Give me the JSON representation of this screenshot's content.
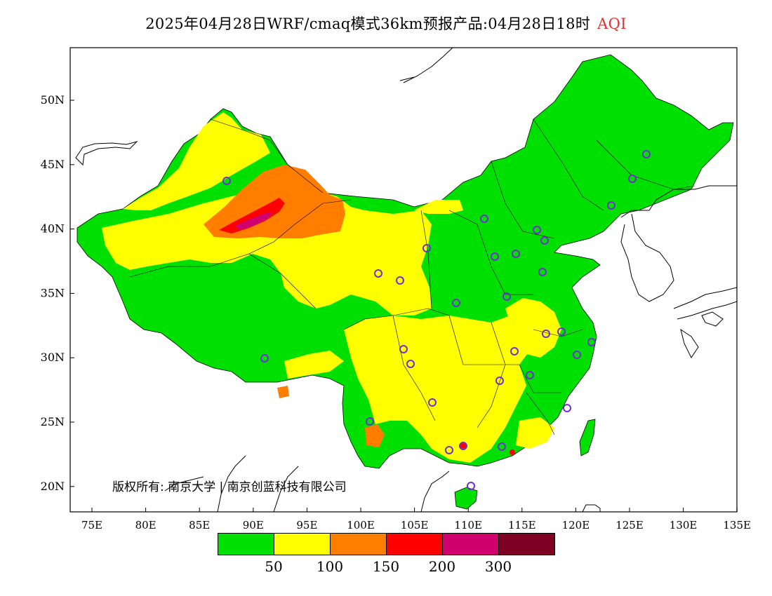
{
  "title": {
    "main": "2025年04月28日WRF/cmaq模式36km预报产品:04月28日18时",
    "variable": "AQI"
  },
  "axes": {
    "lat_ticks": [
      "50N",
      "45N",
      "40N",
      "35N",
      "30N",
      "25N",
      "20N"
    ],
    "lon_ticks": [
      "75E",
      "80E",
      "85E",
      "90E",
      "95E",
      "100E",
      "105E",
      "110E",
      "115E",
      "120E",
      "125E",
      "130E",
      "135E"
    ]
  },
  "copyright": "版权所有: 南京大学 | 南京创蓝科技有限公司",
  "legend": {
    "colors": [
      "#00e000",
      "#ffff00",
      "#ff7e00",
      "#ff0000",
      "#d0006e",
      "#7e0023"
    ],
    "labels": [
      "50",
      "100",
      "150",
      "200",
      "300"
    ]
  },
  "colors": {
    "frame": "#000000",
    "station_marker": "#7030d0",
    "title_accent": "#e03030"
  }
}
